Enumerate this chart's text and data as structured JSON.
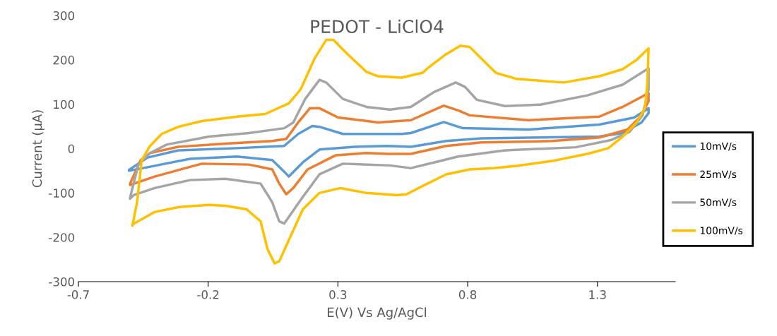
{
  "chart_data": {
    "type": "line",
    "title": "PEDOT - LiClO4",
    "xlabel": "E(V) Vs Ag/AgCl",
    "ylabel": "Current (µA)",
    "xlim": [
      -0.7,
      1.6
    ],
    "xticks": [
      -0.7,
      -0.2,
      0.3,
      0.8,
      1.3
    ],
    "ylim": [
      -300,
      300
    ],
    "yticks": [
      -300,
      -200,
      -100,
      0,
      100,
      200,
      300
    ],
    "grid": false,
    "legend": "right",
    "marker": "none",
    "line_style": "solid",
    "series": [
      {
        "name": "10mV/s",
        "color": "#5b9bd5",
        "x": [
          -0.505,
          -0.433,
          -0.315,
          -0.089,
          0.093,
          0.147,
          0.201,
          0.229,
          0.319,
          0.545,
          0.581,
          0.708,
          0.781,
          1.035,
          1.307,
          1.442,
          1.497,
          1.497,
          1.47,
          1.397,
          1.307,
          0.853,
          0.717,
          0.581,
          0.491,
          0.364,
          0.229,
          0.165,
          0.111,
          0.093,
          0.047,
          -0.089,
          -0.27,
          -0.433,
          -0.505
        ],
        "values": [
          -48,
          -20,
          -4,
          1,
          6,
          33,
          51,
          49,
          33,
          33,
          35,
          60,
          46,
          43,
          54,
          70,
          91,
          80,
          59,
          35,
          27,
          23,
          17,
          4,
          6,
          4,
          -2,
          -31,
          -63,
          -52,
          -26,
          -18,
          -23,
          -42,
          -50
        ]
      },
      {
        "name": "25mV/s",
        "color": "#ed7d31",
        "x": [
          -0.501,
          -0.46,
          -0.424,
          -0.315,
          -0.134,
          0.047,
          0.101,
          0.147,
          0.192,
          0.229,
          0.301,
          0.455,
          0.581,
          0.708,
          0.763,
          0.808,
          1.035,
          1.307,
          1.397,
          1.497,
          1.497,
          1.47,
          1.416,
          1.307,
          1.125,
          0.853,
          0.717,
          0.581,
          0.491,
          0.41,
          0.292,
          0.183,
          0.128,
          0.101,
          0.074,
          0.047,
          -0.043,
          -0.224,
          -0.406,
          -0.501
        ],
        "values": [
          -79,
          -26,
          -10,
          4,
          11,
          17,
          22,
          59,
          91,
          91,
          70,
          59,
          64,
          97,
          86,
          75,
          64,
          72,
          94,
          125,
          107,
          75,
          43,
          25,
          17,
          14,
          6,
          -12,
          -12,
          -10,
          -15,
          -47,
          -89,
          -103,
          -79,
          -47,
          -36,
          -34,
          -63,
          -82
        ]
      },
      {
        "name": "50mV/s",
        "color": "#a5a5a5",
        "x": [
          -0.501,
          -0.469,
          -0.424,
          -0.36,
          -0.197,
          -0.043,
          0.093,
          0.128,
          0.174,
          0.229,
          0.255,
          0.319,
          0.41,
          0.501,
          0.581,
          0.672,
          0.754,
          0.79,
          0.835,
          0.944,
          1.08,
          1.261,
          1.397,
          1.497,
          1.497,
          1.474,
          1.424,
          1.351,
          1.216,
          0.944,
          0.763,
          0.672,
          0.581,
          0.501,
          0.319,
          0.229,
          0.156,
          0.093,
          0.074,
          0.047,
          0.002,
          -0.134,
          -0.27,
          -0.406,
          -0.487,
          -0.501
        ],
        "values": [
          -111,
          -36,
          -10,
          9,
          27,
          35,
          46,
          59,
          112,
          155,
          149,
          112,
          94,
          88,
          94,
          128,
          149,
          139,
          110,
          96,
          99,
          120,
          144,
          181,
          133,
          75,
          38,
          19,
          3,
          -4,
          -18,
          -31,
          -44,
          -38,
          -34,
          -58,
          -116,
          -169,
          -164,
          -121,
          -79,
          -68,
          -71,
          -89,
          -105,
          -113
        ]
      },
      {
        "name": "100mV/s",
        "color": "#ffc000",
        "x": [
          -0.492,
          -0.474,
          -0.456,
          -0.424,
          -0.379,
          -0.315,
          -0.224,
          -0.089,
          0.02,
          0.111,
          0.156,
          0.21,
          0.255,
          0.283,
          0.328,
          0.41,
          0.455,
          0.545,
          0.627,
          0.645,
          0.717,
          0.772,
          0.808,
          0.853,
          0.908,
          0.989,
          1.171,
          1.307,
          1.397,
          1.451,
          1.497,
          1.492,
          1.483,
          1.451,
          1.397,
          1.342,
          1.261,
          1.125,
          0.989,
          0.899,
          0.808,
          0.717,
          0.645,
          0.564,
          0.527,
          0.41,
          0.31,
          0.229,
          0.165,
          0.111,
          0.074,
          0.056,
          0.029,
          0.002,
          -0.052,
          -0.134,
          -0.197,
          -0.315,
          -0.406,
          -0.492
        ],
        "values": [
          -174,
          -121,
          -26,
          6,
          33,
          49,
          62,
          72,
          78,
          102,
          133,
          203,
          245,
          245,
          218,
          173,
          163,
          160,
          171,
          181,
          213,
          232,
          229,
          203,
          171,
          157,
          149,
          163,
          179,
          200,
          226,
          144,
          91,
          59,
          27,
          1,
          -12,
          -28,
          -39,
          -44,
          -47,
          -58,
          -79,
          -103,
          -105,
          -100,
          -89,
          -100,
          -137,
          -206,
          -254,
          -259,
          -227,
          -164,
          -137,
          -129,
          -127,
          -132,
          -143,
          -171
        ]
      }
    ]
  }
}
